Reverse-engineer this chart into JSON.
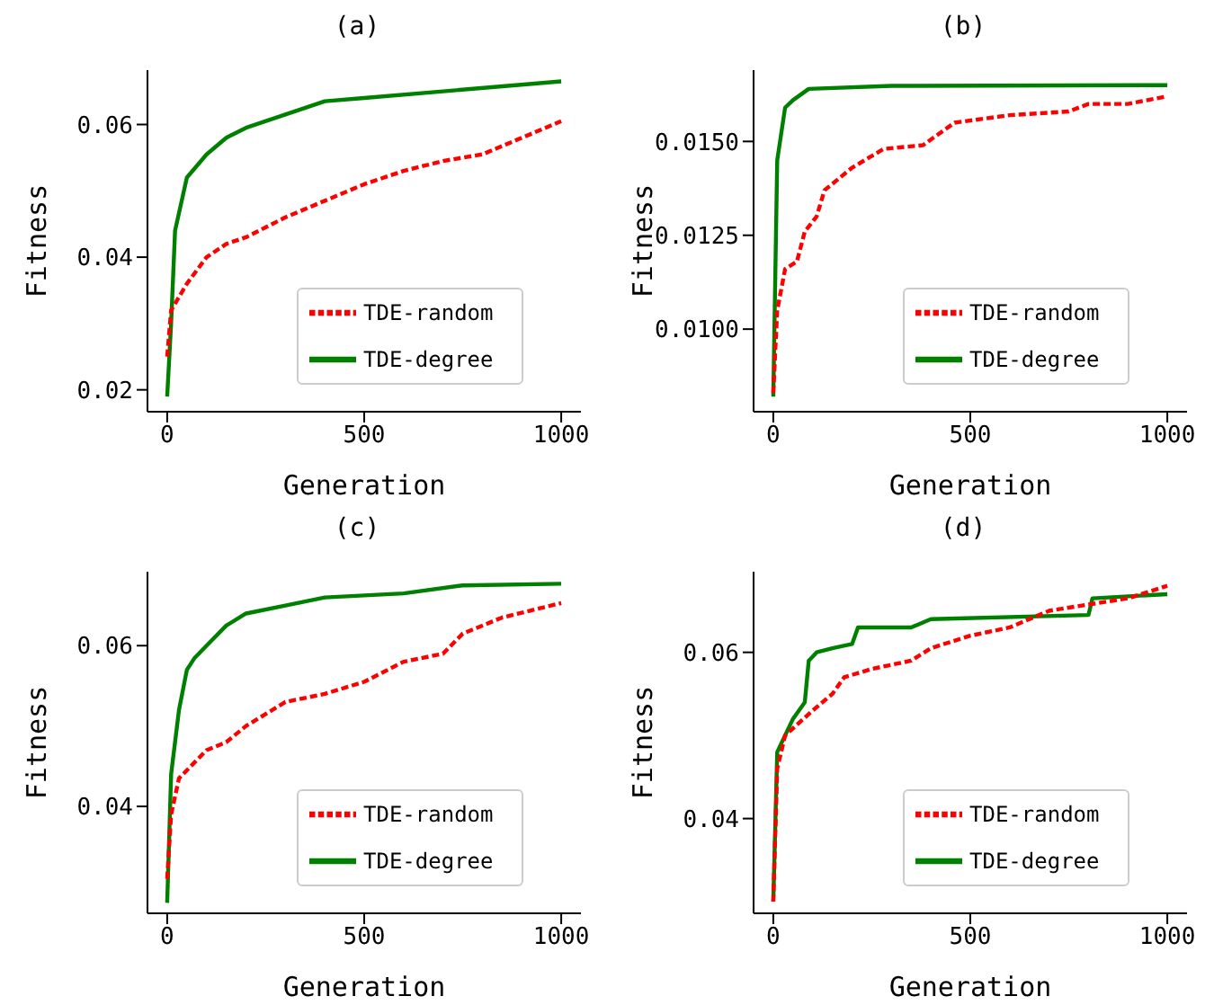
{
  "chart_data": [
    {
      "type": "line",
      "title": "(a)",
      "xlabel": "Generation",
      "ylabel": "Fitness",
      "xlim": [
        -50,
        1050
      ],
      "xticks": [
        0,
        500,
        1000
      ],
      "ylim": [
        0.0167,
        0.0682
      ],
      "yticks": [
        {
          "value": 0.02,
          "label": "0.02"
        },
        {
          "value": 0.04,
          "label": "0.04"
        },
        {
          "value": 0.06,
          "label": "0.06"
        }
      ],
      "legend": "bottom right",
      "grid": false,
      "series": [
        {
          "name": "TDE-random",
          "color": "#ff0000",
          "line_style": "dashed",
          "x": [
            0,
            10,
            50,
            100,
            150,
            200,
            300,
            400,
            500,
            600,
            700,
            800,
            900,
            1000
          ],
          "values": [
            0.025,
            0.032,
            0.036,
            0.04,
            0.042,
            0.043,
            0.046,
            0.0485,
            0.051,
            0.053,
            0.0545,
            0.0555,
            0.058,
            0.0605
          ]
        },
        {
          "name": "TDE-degree",
          "color": "#008000",
          "line_style": "solid",
          "x": [
            0,
            10,
            20,
            50,
            100,
            150,
            200,
            300,
            400,
            500,
            700,
            1000
          ],
          "values": [
            0.019,
            0.03,
            0.044,
            0.052,
            0.0555,
            0.058,
            0.0595,
            0.0615,
            0.0635,
            0.064,
            0.065,
            0.0665
          ]
        }
      ]
    },
    {
      "type": "line",
      "title": "(b)",
      "xlabel": "Generation",
      "ylabel": "Fitness",
      "xlim": [
        -50,
        1050
      ],
      "xticks": [
        0,
        500,
        1000
      ],
      "ylim": [
        0.0078,
        0.0169
      ],
      "yticks": [
        {
          "value": 0.01,
          "label": "0.0100"
        },
        {
          "value": 0.0125,
          "label": "0.0125"
        },
        {
          "value": 0.015,
          "label": "0.0150"
        }
      ],
      "legend": "bottom right",
      "grid": false,
      "series": [
        {
          "name": "TDE-random",
          "color": "#ff0000",
          "line_style": "dashed",
          "x": [
            0,
            10,
            30,
            60,
            80,
            110,
            130,
            200,
            280,
            380,
            460,
            600,
            750,
            800,
            900,
            1000
          ],
          "values": [
            0.0083,
            0.0105,
            0.0116,
            0.0118,
            0.0126,
            0.013,
            0.0137,
            0.0143,
            0.0148,
            0.0149,
            0.0155,
            0.0157,
            0.0158,
            0.016,
            0.016,
            0.0162
          ]
        },
        {
          "name": "TDE-degree",
          "color": "#008000",
          "line_style": "solid",
          "x": [
            0,
            10,
            30,
            50,
            90,
            300,
            1000
          ],
          "values": [
            0.0082,
            0.0145,
            0.0159,
            0.0161,
            0.0164,
            0.01648,
            0.0165
          ]
        }
      ]
    },
    {
      "type": "line",
      "title": "(c)",
      "xlabel": "Generation",
      "ylabel": "Fitness",
      "xlim": [
        -50,
        1050
      ],
      "xticks": [
        0,
        500,
        1000
      ],
      "ylim": [
        0.0267,
        0.0692
      ],
      "yticks": [
        {
          "value": 0.04,
          "label": "0.04"
        },
        {
          "value": 0.06,
          "label": "0.06"
        }
      ],
      "legend": "bottom right",
      "grid": false,
      "series": [
        {
          "name": "TDE-random",
          "color": "#ff0000",
          "line_style": "dashed",
          "x": [
            0,
            10,
            30,
            100,
            150,
            200,
            300,
            400,
            500,
            600,
            700,
            750,
            850,
            1000
          ],
          "values": [
            0.031,
            0.039,
            0.0435,
            0.047,
            0.048,
            0.05,
            0.053,
            0.054,
            0.0555,
            0.058,
            0.059,
            0.0615,
            0.0635,
            0.0653
          ]
        },
        {
          "name": "TDE-degree",
          "color": "#008000",
          "line_style": "solid",
          "x": [
            0,
            10,
            30,
            50,
            70,
            100,
            150,
            200,
            300,
            400,
            600,
            750,
            1000
          ],
          "values": [
            0.028,
            0.044,
            0.052,
            0.057,
            0.0585,
            0.06,
            0.0625,
            0.064,
            0.065,
            0.066,
            0.0665,
            0.0675,
            0.0677
          ]
        }
      ]
    },
    {
      "type": "line",
      "title": "(d)",
      "xlabel": "Generation",
      "ylabel": "Fitness",
      "xlim": [
        -50,
        1050
      ],
      "xticks": [
        0,
        500,
        1000
      ],
      "ylim": [
        0.0286,
        0.0697
      ],
      "yticks": [
        {
          "value": 0.04,
          "label": "0.04"
        },
        {
          "value": 0.06,
          "label": "0.06"
        }
      ],
      "legend": "bottom right",
      "grid": false,
      "series": [
        {
          "name": "TDE-random",
          "color": "#ff0000",
          "line_style": "dashed",
          "x": [
            0,
            10,
            30,
            100,
            150,
            180,
            250,
            350,
            400,
            500,
            600,
            700,
            900,
            1000
          ],
          "values": [
            0.03,
            0.046,
            0.05,
            0.053,
            0.055,
            0.057,
            0.058,
            0.059,
            0.0605,
            0.062,
            0.063,
            0.065,
            0.0665,
            0.068
          ]
        },
        {
          "name": "TDE-degree",
          "color": "#008000",
          "line_style": "solid",
          "x": [
            0,
            10,
            30,
            50,
            80,
            90,
            110,
            150,
            200,
            215,
            350,
            400,
            800,
            810,
            1000
          ],
          "values": [
            0.03,
            0.048,
            0.05,
            0.052,
            0.054,
            0.059,
            0.06,
            0.0605,
            0.061,
            0.063,
            0.063,
            0.064,
            0.0645,
            0.0665,
            0.067
          ]
        }
      ]
    }
  ]
}
